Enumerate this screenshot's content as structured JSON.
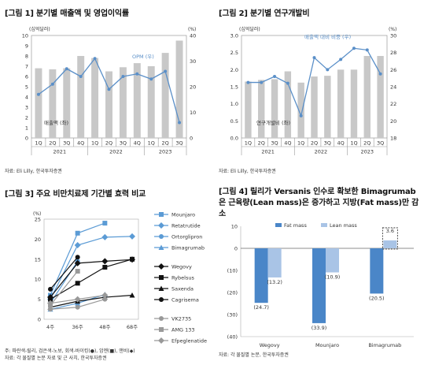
{
  "panels": {
    "p1": {
      "title": "[그림 1] 분기별 매출액 및 영업이익률",
      "source": "자료: Eli Lilly, 한국투자증권"
    },
    "p2": {
      "title": "[그림 2] 분기별 연구개발비",
      "source": "자료: Eli Lilly, 한국투자증권"
    },
    "p3": {
      "title": "[그림 3] 주요 비만치료제 기간별 효력 비교",
      "notes": [
        "주: 파란색-릴리, 검은색-노보, 회색-바이킹(●), 암젠(■), 앤비(◆)",
        "자료: 각 물질별 논문 자료 및 근 사치, 한국투자증권"
      ]
    },
    "p4": {
      "title": "[그림 4] 릴리가 Versanis 인수로 확보한 Bimagrumab은 근육량(Lean mass)은 증가하고 지방(Fat mass)만 감소",
      "source": "자료: 각 물질별 논문, 한국투자증권"
    }
  },
  "chart_data": [
    {
      "id": "chart1",
      "type": "bar",
      "categories": [
        "1Q",
        "2Q",
        "3Q",
        "4Q",
        "1Q",
        "2Q",
        "3Q",
        "4Q",
        "1Q",
        "2Q",
        "3Q"
      ],
      "groups": [
        "2021",
        "2022",
        "2023"
      ],
      "left_unit": "(십억달러)",
      "right_unit": "(%)",
      "ylim_left": [
        0,
        10
      ],
      "ylim_right": [
        0,
        40
      ],
      "yticks_left": [
        "0",
        "1",
        "2",
        "3",
        "4",
        "5",
        "6",
        "7",
        "8",
        "9",
        "10"
      ],
      "yticks_right": [
        "0",
        "10",
        "20",
        "30",
        "40"
      ],
      "series": [
        {
          "name": "매출액 (좌)",
          "axis": "left",
          "color": "#c8c8c8",
          "values": [
            6.8,
            6.7,
            6.8,
            8.0,
            7.8,
            6.5,
            6.9,
            7.3,
            7.0,
            8.3,
            9.5
          ]
        },
        {
          "name": "OPM (우)",
          "axis": "right",
          "color": "#5a8fc8",
          "values": [
            17,
            21,
            27,
            24,
            31,
            19,
            24,
            25,
            23,
            26,
            6
          ]
        }
      ]
    },
    {
      "id": "chart2",
      "type": "bar",
      "categories": [
        "1Q",
        "2Q",
        "3Q",
        "4Q",
        "1Q",
        "2Q",
        "3Q",
        "4Q",
        "1Q",
        "2Q",
        "3Q"
      ],
      "groups": [
        "2021",
        "2022",
        "2023"
      ],
      "left_unit": "(십억달러)",
      "right_unit": "(%)",
      "ylim_left": [
        0,
        3.0
      ],
      "ylim_right": [
        18,
        30
      ],
      "yticks_left": [
        "0.0",
        "0.5",
        "1.0",
        "1.5",
        "2.0",
        "2.5",
        "3.0"
      ],
      "yticks_right": [
        "18",
        "20",
        "22",
        "24",
        "26",
        "28",
        "30"
      ],
      "series": [
        {
          "name": "연구개발비 (좌)",
          "axis": "left",
          "color": "#c8c8c8",
          "values": [
            1.65,
            1.7,
            1.72,
            1.95,
            1.62,
            1.8,
            1.82,
            2.0,
            2.0,
            2.4,
            2.4
          ]
        },
        {
          "name": "매출액 대비 비중 (우)",
          "axis": "right",
          "color": "#5a8fc8",
          "values": [
            24.5,
            24.5,
            25.2,
            24.4,
            20.6,
            27.4,
            26.0,
            27.2,
            28.5,
            28.3,
            25.5
          ]
        }
      ]
    },
    {
      "id": "chart3",
      "type": "line",
      "unit": "(%)",
      "categories": [
        "4주",
        "36주",
        "48주",
        "68주"
      ],
      "ylim": [
        0,
        25
      ],
      "yticks": [
        "0",
        "5",
        "10",
        "15",
        "20",
        "25"
      ],
      "series": [
        {
          "name": "Mounjaro",
          "color": "#5b9bd5",
          "marker": "square",
          "points": [
            [
              0,
              6
            ],
            [
              1,
              21.5
            ],
            [
              2,
              24
            ]
          ]
        },
        {
          "name": "Retatrutide",
          "color": "#5b9bd5",
          "marker": "diamond",
          "points": [
            [
              0,
              5
            ],
            [
              1,
              18.5
            ],
            [
              2,
              20.5
            ],
            [
              3,
              20.7
            ]
          ]
        },
        {
          "name": "Ortorglipron",
          "color": "#5b9bd5",
          "marker": "circle",
          "points": [
            [
              0,
              4
            ],
            [
              1,
              14.5
            ]
          ]
        },
        {
          "name": "Bimagrumab",
          "color": "#5b9bd5",
          "marker": "triangle",
          "points": [
            [
              0,
              2.5
            ],
            [
              1,
              4
            ],
            [
              2,
              6.2
            ]
          ]
        },
        {
          "name": "Wegovy",
          "color": "#111111",
          "marker": "diamond",
          "points": [
            [
              0,
              5.5
            ],
            [
              1,
              14
            ],
            [
              2,
              14.5
            ],
            [
              3,
              14.9
            ]
          ]
        },
        {
          "name": "Rybelsus",
          "color": "#111111",
          "marker": "square",
          "points": [
            [
              0,
              5
            ],
            [
              1,
              9
            ],
            [
              2,
              13
            ],
            [
              3,
              15
            ]
          ]
        },
        {
          "name": "Saxenda",
          "color": "#111111",
          "marker": "triangle",
          "points": [
            [
              0,
              3
            ],
            [
              1,
              4.5
            ],
            [
              2,
              5.5
            ],
            [
              3,
              6
            ]
          ]
        },
        {
          "name": "Cagrisema",
          "color": "#111111",
          "marker": "circle",
          "points": [
            [
              0,
              7.5
            ],
            [
              1,
              15.5
            ]
          ]
        },
        {
          "name": "VK2735",
          "color": "#999999",
          "marker": "circle",
          "points": [
            [
              0,
              2.5
            ],
            [
              1,
              3
            ],
            [
              2,
              5
            ]
          ]
        },
        {
          "name": "AMG 133",
          "color": "#999999",
          "marker": "square",
          "points": [
            [
              0,
              3.5
            ],
            [
              1,
              12
            ]
          ]
        },
        {
          "name": "Efpeglenatide",
          "color": "#999999",
          "marker": "diamond",
          "points": [
            [
              0,
              4
            ],
            [
              1,
              5
            ],
            [
              2,
              6
            ]
          ]
        }
      ]
    },
    {
      "id": "chart4",
      "type": "bar",
      "categories": [
        "Wegovy",
        "Mounjaro",
        "Bimagrumab"
      ],
      "ylim": [
        -40,
        10
      ],
      "yticks": [
        "10",
        "0",
        "(10)",
        "(20)",
        "(30)",
        "(40)"
      ],
      "series": [
        {
          "name": "Fat mass",
          "color": "#4a86c8",
          "values": [
            -24.7,
            -33.9,
            -20.5
          ],
          "labels": [
            "(24.7)",
            "(33.9)",
            "(20.5)"
          ]
        },
        {
          "name": "Lean mass",
          "color": "#a9c4e6",
          "values": [
            -13.2,
            -10.9,
            3.6
          ],
          "labels": [
            "(13.2)",
            "(10.9)",
            "3.6"
          ]
        }
      ]
    }
  ]
}
